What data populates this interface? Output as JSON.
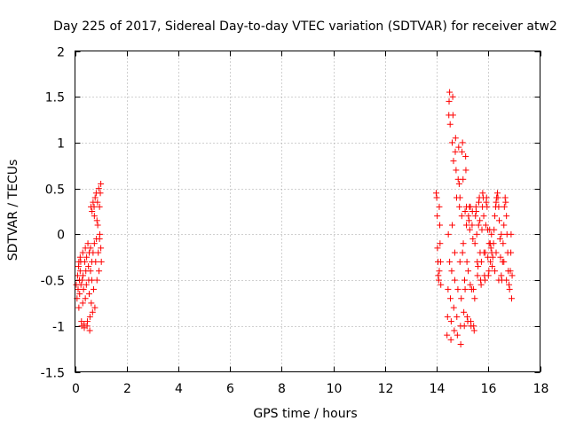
{
  "chart_data": {
    "type": "scatter",
    "title": "Day 225 of 2017, Sidereal Day-to-day VTEC variation (SDTVAR) for receiver atw2",
    "xlabel": "GPS time / hours",
    "ylabel": "SDTVAR / TECUs",
    "xlim": [
      0,
      18
    ],
    "ylim": [
      -1.5,
      2
    ],
    "x_ticks": [
      0,
      2,
      4,
      6,
      8,
      10,
      12,
      14,
      16,
      18
    ],
    "x_tick_labels": [
      "0",
      "2",
      "4",
      "6",
      "8",
      "10",
      "12",
      "14",
      "16",
      "18"
    ],
    "y_ticks": [
      -1.5,
      -1,
      -0.5,
      0,
      0.5,
      1,
      1.5,
      2
    ],
    "y_tick_labels": [
      "-1.5",
      "-1",
      "-0.5",
      "0",
      "0.5",
      "1",
      "1.5",
      "2"
    ],
    "grid": true,
    "marker": "+",
    "series_color": "#ff0000",
    "series": [
      {
        "name": "atw2",
        "points": [
          [
            0.05,
            -0.55
          ],
          [
            0.08,
            -0.7
          ],
          [
            0.1,
            -0.45
          ],
          [
            0.12,
            -0.6
          ],
          [
            0.14,
            -0.35
          ],
          [
            0.15,
            -0.8
          ],
          [
            0.17,
            -0.5
          ],
          [
            0.18,
            -0.65
          ],
          [
            0.2,
            -0.4
          ],
          [
            0.22,
            -0.3
          ],
          [
            0.23,
            -0.55
          ],
          [
            0.25,
            -0.95
          ],
          [
            0.26,
            -1.0
          ],
          [
            0.28,
            -0.5
          ],
          [
            0.3,
            -0.2
          ],
          [
            0.31,
            -0.45
          ],
          [
            0.33,
            -0.6
          ],
          [
            0.35,
            -0.98
          ],
          [
            0.36,
            -1.02
          ],
          [
            0.38,
            -0.3
          ],
          [
            0.4,
            -0.15
          ],
          [
            0.42,
            -0.4
          ],
          [
            0.44,
            -0.55
          ],
          [
            0.45,
            -0.25
          ],
          [
            0.47,
            -1.0
          ],
          [
            0.48,
            -0.95
          ],
          [
            0.5,
            -0.1
          ],
          [
            0.52,
            -0.35
          ],
          [
            0.53,
            -0.5
          ],
          [
            0.55,
            -0.2
          ],
          [
            0.57,
            -1.05
          ],
          [
            0.58,
            -0.9
          ],
          [
            0.6,
            -0.4
          ],
          [
            0.6,
            -0.15
          ],
          [
            0.62,
            0.3
          ],
          [
            0.63,
            -0.75
          ],
          [
            0.65,
            -0.3
          ],
          [
            0.66,
            0.25
          ],
          [
            0.68,
            -0.85
          ],
          [
            0.7,
            -0.2
          ],
          [
            0.7,
            0.35
          ],
          [
            0.72,
            -0.6
          ],
          [
            0.74,
            0.3
          ],
          [
            0.75,
            -0.1
          ],
          [
            0.77,
            -0.8
          ],
          [
            0.78,
            0.4
          ],
          [
            0.8,
            -0.3
          ],
          [
            0.82,
            0.45
          ],
          [
            0.83,
            -0.05
          ],
          [
            0.85,
            -0.5
          ],
          [
            0.87,
            0.35
          ],
          [
            0.88,
            0.1
          ],
          [
            0.9,
            -0.2
          ],
          [
            0.92,
            0.5
          ],
          [
            0.93,
            -0.4
          ],
          [
            0.95,
            0.3
          ],
          [
            0.96,
            0.0
          ],
          [
            0.98,
            0.45
          ],
          [
            1.0,
            -0.15
          ],
          [
            1.0,
            0.55
          ],
          [
            1.02,
            -0.3
          ],
          [
            0.4,
            -0.7
          ],
          [
            0.3,
            -0.75
          ],
          [
            0.2,
            -0.25
          ],
          [
            0.15,
            -0.3
          ],
          [
            0.55,
            -0.65
          ],
          [
            0.65,
            -0.5
          ],
          [
            0.75,
            0.2
          ],
          [
            0.85,
            0.15
          ],
          [
            0.95,
            -0.05
          ],
          [
            13.98,
            0.45
          ],
          [
            14.0,
            0.4
          ],
          [
            14.02,
            0.2
          ],
          [
            14.03,
            -0.15
          ],
          [
            14.05,
            -0.3
          ],
          [
            14.06,
            -0.45
          ],
          [
            14.08,
            -0.5
          ],
          [
            14.1,
            -0.4
          ],
          [
            14.1,
            0.3
          ],
          [
            14.12,
            0.1
          ],
          [
            14.13,
            -0.1
          ],
          [
            14.15,
            -0.3
          ],
          [
            14.16,
            -0.55
          ],
          [
            14.4,
            -1.1
          ],
          [
            14.42,
            -0.9
          ],
          [
            14.44,
            -0.6
          ],
          [
            14.45,
            0.0
          ],
          [
            14.47,
            1.3
          ],
          [
            14.48,
            1.45
          ],
          [
            14.5,
            1.55
          ],
          [
            14.52,
            1.2
          ],
          [
            14.53,
            -0.7
          ],
          [
            14.55,
            -1.15
          ],
          [
            14.56,
            -0.95
          ],
          [
            14.58,
            -0.4
          ],
          [
            14.6,
            1.0
          ],
          [
            14.62,
            1.5
          ],
          [
            14.63,
            1.3
          ],
          [
            14.65,
            0.8
          ],
          [
            14.66,
            -0.8
          ],
          [
            14.68,
            -1.05
          ],
          [
            14.7,
            -0.5
          ],
          [
            14.72,
            0.9
          ],
          [
            14.73,
            1.05
          ],
          [
            14.75,
            0.7
          ],
          [
            14.77,
            0.4
          ],
          [
            14.78,
            -0.9
          ],
          [
            14.8,
            -1.1
          ],
          [
            14.82,
            -0.6
          ],
          [
            14.83,
            0.6
          ],
          [
            14.85,
            0.95
          ],
          [
            14.87,
            0.55
          ],
          [
            14.88,
            0.3
          ],
          [
            14.9,
            -0.3
          ],
          [
            14.92,
            -1.0
          ],
          [
            14.93,
            -1.2
          ],
          [
            14.95,
            -0.7
          ],
          [
            14.97,
            0.2
          ],
          [
            14.98,
            0.9
          ],
          [
            15.0,
            1.0
          ],
          [
            15.02,
            0.6
          ],
          [
            15.03,
            -0.1
          ],
          [
            15.05,
            -0.85
          ],
          [
            15.07,
            -1.0
          ],
          [
            15.08,
            -0.5
          ],
          [
            15.1,
            0.25
          ],
          [
            15.12,
            0.85
          ],
          [
            15.13,
            0.7
          ],
          [
            15.15,
            0.3
          ],
          [
            15.17,
            -0.3
          ],
          [
            15.18,
            -0.9
          ],
          [
            15.2,
            -0.95
          ],
          [
            15.22,
            -0.4
          ],
          [
            15.23,
            0.2
          ],
          [
            15.25,
            0.15
          ],
          [
            15.27,
            0.3
          ],
          [
            15.28,
            0.05
          ],
          [
            15.3,
            -0.55
          ],
          [
            15.32,
            -0.95
          ],
          [
            15.33,
            -1.0
          ],
          [
            15.35,
            -0.6
          ],
          [
            15.37,
            0.1
          ],
          [
            15.38,
            0.25
          ],
          [
            15.4,
            -0.05
          ],
          [
            15.42,
            -0.6
          ],
          [
            15.43,
            -1.0
          ],
          [
            15.45,
            -1.05
          ],
          [
            15.47,
            -0.7
          ],
          [
            15.48,
            -0.1
          ],
          [
            15.5,
            0.2
          ],
          [
            15.52,
            0.3
          ],
          [
            15.53,
            0.25
          ],
          [
            15.55,
            0.0
          ],
          [
            15.57,
            -0.3
          ],
          [
            15.58,
            -0.45
          ],
          [
            15.6,
            -0.35
          ],
          [
            15.62,
            0.1
          ],
          [
            15.63,
            0.35
          ],
          [
            15.65,
            0.4
          ],
          [
            15.67,
            0.15
          ],
          [
            15.68,
            -0.2
          ],
          [
            15.7,
            -0.5
          ],
          [
            15.72,
            -0.55
          ],
          [
            15.73,
            -0.3
          ],
          [
            15.75,
            0.05
          ],
          [
            15.77,
            0.3
          ],
          [
            15.78,
            0.45
          ],
          [
            15.8,
            0.4
          ],
          [
            15.82,
            0.2
          ],
          [
            15.83,
            -0.2
          ],
          [
            15.85,
            -0.45
          ],
          [
            15.87,
            -0.5
          ],
          [
            15.88,
            -0.2
          ],
          [
            15.9,
            0.1
          ],
          [
            15.92,
            0.35
          ],
          [
            15.93,
            0.4
          ],
          [
            15.95,
            0.3
          ],
          [
            15.97,
            0.05
          ],
          [
            15.98,
            -0.25
          ],
          [
            16.0,
            -0.45
          ],
          [
            16.02,
            -0.4
          ],
          [
            16.03,
            -0.1
          ],
          [
            16.05,
            0.05
          ],
          [
            16.07,
            -0.1
          ],
          [
            16.08,
            -0.3
          ],
          [
            16.1,
            -0.15
          ],
          [
            16.12,
            0.0
          ],
          [
            16.13,
            -0.2
          ],
          [
            16.15,
            -0.35
          ],
          [
            16.17,
            -0.25
          ],
          [
            16.2,
            -0.1
          ],
          [
            16.22,
            0.05
          ],
          [
            16.25,
            0.2
          ],
          [
            16.28,
            0.3
          ],
          [
            16.3,
            0.35
          ],
          [
            16.32,
            0.4
          ],
          [
            16.35,
            0.45
          ],
          [
            16.37,
            0.4
          ],
          [
            16.4,
            0.3
          ],
          [
            16.42,
            0.15
          ],
          [
            16.45,
            -0.05
          ],
          [
            16.47,
            -0.25
          ],
          [
            16.5,
            -0.45
          ],
          [
            16.52,
            -0.5
          ],
          [
            16.55,
            -0.3
          ],
          [
            16.57,
            -0.1
          ],
          [
            16.6,
            0.1
          ],
          [
            16.62,
            0.3
          ],
          [
            16.65,
            0.4
          ],
          [
            16.67,
            0.35
          ],
          [
            16.7,
            0.2
          ],
          [
            16.72,
            0.0
          ],
          [
            16.75,
            -0.2
          ],
          [
            16.77,
            -0.4
          ],
          [
            16.8,
            -0.55
          ],
          [
            16.82,
            -0.6
          ],
          [
            16.85,
            -0.4
          ],
          [
            16.87,
            -0.2
          ],
          [
            16.88,
            0.0
          ],
          [
            16.9,
            -0.7
          ],
          [
            16.92,
            -0.45
          ],
          [
            16.6,
            -0.3
          ],
          [
            16.4,
            -0.5
          ],
          [
            16.3,
            -0.2
          ],
          [
            16.25,
            -0.4
          ],
          [
            16.7,
            -0.5
          ],
          [
            16.5,
            0.0
          ],
          [
            14.5,
            -0.3
          ],
          [
            14.6,
            0.1
          ],
          [
            14.7,
            -0.2
          ],
          [
            14.9,
            0.4
          ],
          [
            15.0,
            -0.2
          ],
          [
            15.1,
            -0.6
          ],
          [
            15.3,
            0.3
          ],
          [
            15.15,
            0.1
          ]
        ]
      }
    ]
  }
}
